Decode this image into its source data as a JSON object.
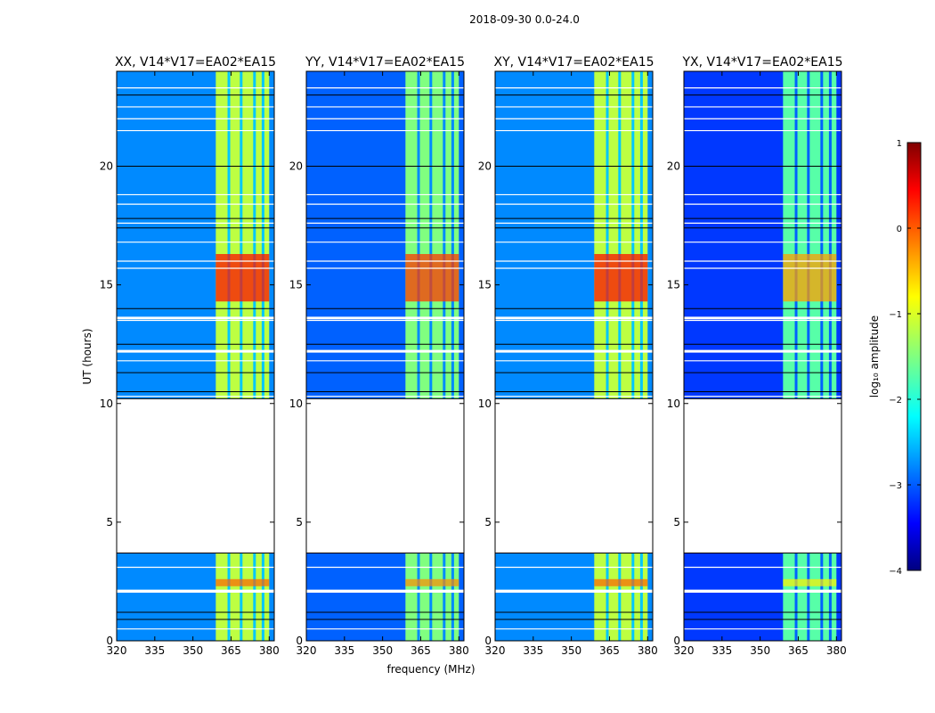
{
  "chart_data": {
    "type": "heatmap",
    "title": "2018-09-30 0.0-24.0",
    "xlabel": "frequency (MHz)",
    "ylabel": "UT (hours)",
    "xlim": [
      320,
      382
    ],
    "ylim": [
      0,
      24
    ],
    "xticks": [
      320,
      335,
      350,
      365,
      380
    ],
    "yticks": [
      0,
      5,
      10,
      15,
      20
    ],
    "data_gaps_hours": [
      [
        3.7,
        10.2
      ]
    ],
    "band_mhz": [
      359,
      380
    ],
    "panels": [
      {
        "title": "XX, V14*V17=EA02*EA15",
        "background_log_amp": -2.7,
        "band_log_amp": -1.2,
        "flare_log_amp": 0.3
      },
      {
        "title": "YY, V14*V17=EA02*EA15",
        "background_log_amp": -2.9,
        "band_log_amp": -1.5,
        "flare_log_amp": 0.1
      },
      {
        "title": "XY, V14*V17=EA02*EA15",
        "background_log_amp": -2.7,
        "band_log_amp": -1.2,
        "flare_log_amp": 0.3
      },
      {
        "title": "YX, V14*V17=EA02*EA15",
        "background_log_amp": -3.1,
        "band_log_amp": -1.7,
        "flare_log_amp": -0.4
      }
    ],
    "colorbar": {
      "label": "log₁₀ amplitude",
      "range": [
        -4,
        1
      ],
      "ticks": [
        "1",
        "0",
        "−1",
        "−2",
        "−3",
        "−4"
      ],
      "colormap": "jet"
    }
  }
}
